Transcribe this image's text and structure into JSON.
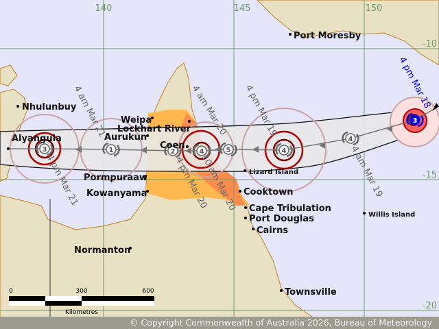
{
  "colors": {
    "sea": "#e6e6fa",
    "land": "#e9e1c4",
    "coast": "#c08020",
    "warning_zone": "#ffb84d",
    "watch_zone": "#ff8c4c",
    "track_area": "#e8e8e8",
    "gale_circle": "#c9a3a3",
    "storm_circle": "#b00000",
    "hurricane_circle": "#7a0000",
    "current_position": "#ff6060",
    "current_label": "#0000ee",
    "grid": "#6a9a6a"
  },
  "grid": {
    "longitudes": [
      "140",
      "145",
      "150"
    ],
    "latitudes": [
      "-10",
      "-15",
      "-20"
    ]
  },
  "places": [
    {
      "name": "Port Moresby"
    },
    {
      "name": "Nhulunbuy"
    },
    {
      "name": "Weipa"
    },
    {
      "name": "Lockhart River"
    },
    {
      "name": "Aurukun"
    },
    {
      "name": "Alyangula"
    },
    {
      "name": "Coen"
    },
    {
      "name": "Pormpuraaw"
    },
    {
      "name": "Kowanyama"
    },
    {
      "name": "Lizard Island"
    },
    {
      "name": "Cooktown"
    },
    {
      "name": "Cape Tribulation"
    },
    {
      "name": "Port Douglas"
    },
    {
      "name": "Cairns"
    },
    {
      "name": "Willis Island"
    },
    {
      "name": "Normanton"
    },
    {
      "name": "Townsville"
    }
  ],
  "track": [
    {
      "time": "4 pm Mar 18",
      "category": "3",
      "current": true
    },
    {
      "time": "4 am Mar 19",
      "category": "4"
    },
    {
      "time": "4 pm Mar 19",
      "category": "4"
    },
    {
      "time": "4 am Mar 20",
      "category": "5"
    },
    {
      "time": "10 am Mar 20",
      "category": "4"
    },
    {
      "time": "4 pm Mar 20",
      "category": "2"
    },
    {
      "time": "4 am Mar 21",
      "category": "1"
    },
    {
      "time": "4 pm Mar 21",
      "category": "3"
    }
  ],
  "scale": {
    "ticks": [
      "0",
      "300",
      "600"
    ],
    "unit": "Kilometres"
  },
  "footer": "© Copyright Commonwealth of Australia 2026, Bureau of Meteorology"
}
